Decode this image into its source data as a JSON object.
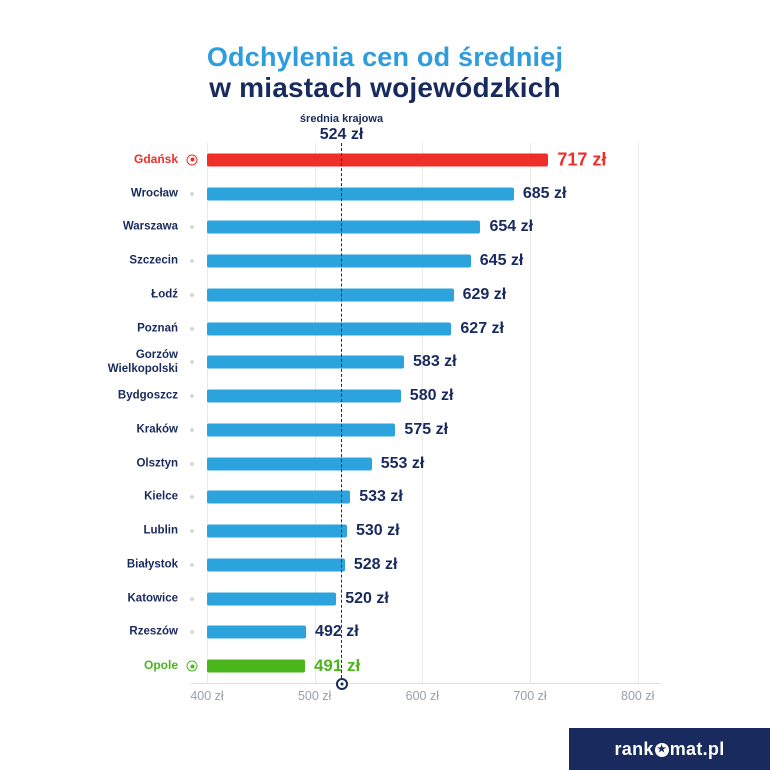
{
  "title": {
    "line1": "Odchylenia cen od średniej",
    "line2": "w miastach wojewódzkich"
  },
  "reference": {
    "label": "średnia krajowa",
    "value_label": "524 zł",
    "value": 524
  },
  "chart_data": {
    "type": "bar",
    "orientation": "horizontal",
    "title": "Odchylenia cen od średniej w miastach wojewódzkich",
    "xlabel": "",
    "ylabel": "",
    "categories": [
      "Gdańsk",
      "Wrocław",
      "Warszawa",
      "Szczecin",
      "Łodź",
      "Poznań",
      "Gorzów Wielkopolski",
      "Bydgoszcz",
      "Kraków",
      "Olsztyn",
      "Kielce",
      "Lublin",
      "Białystok",
      "Katowice",
      "Rzeszów",
      "Opole"
    ],
    "values": [
      717,
      685,
      654,
      645,
      629,
      627,
      583,
      580,
      575,
      553,
      533,
      530,
      528,
      520,
      492,
      491
    ],
    "value_labels": [
      "717 zł",
      "685 zł",
      "654 zł",
      "645 zł",
      "629 zł",
      "627 zł",
      "583 zł",
      "580 zł",
      "575 zł",
      "553 zł",
      "533 zł",
      "530 zł",
      "528 zł",
      "520 zł",
      "492 zł",
      "491 zł"
    ],
    "xlim": [
      400,
      820
    ],
    "x_ticks": [
      {
        "value": 400,
        "label": "400 zł"
      },
      {
        "value": 500,
        "label": "500 zł"
      },
      {
        "value": 600,
        "label": "600 zł"
      },
      {
        "value": 700,
        "label": "700 zł"
      },
      {
        "value": 800,
        "label": "800 zł"
      }
    ],
    "grid": true,
    "legend": "none",
    "reference_line": {
      "value": 524,
      "label": "średnia krajowa",
      "value_label": "524 zł"
    },
    "highlight_max_index": 0,
    "highlight_min_index": 15
  },
  "colors": {
    "title_light_blue": "#2f9cdb",
    "navy": "#182a5e",
    "bar_blue": "#2ba3dc",
    "bar_red": "#ee2e28",
    "bar_green": "#4ab61c",
    "grid": "#e9e9e9",
    "axis_text": "#98a0ac"
  },
  "footer": {
    "logo_prefix": "rank",
    "logo_suffix": "mat.pl",
    "logo_o_icon": "star-in-circle-icon"
  }
}
